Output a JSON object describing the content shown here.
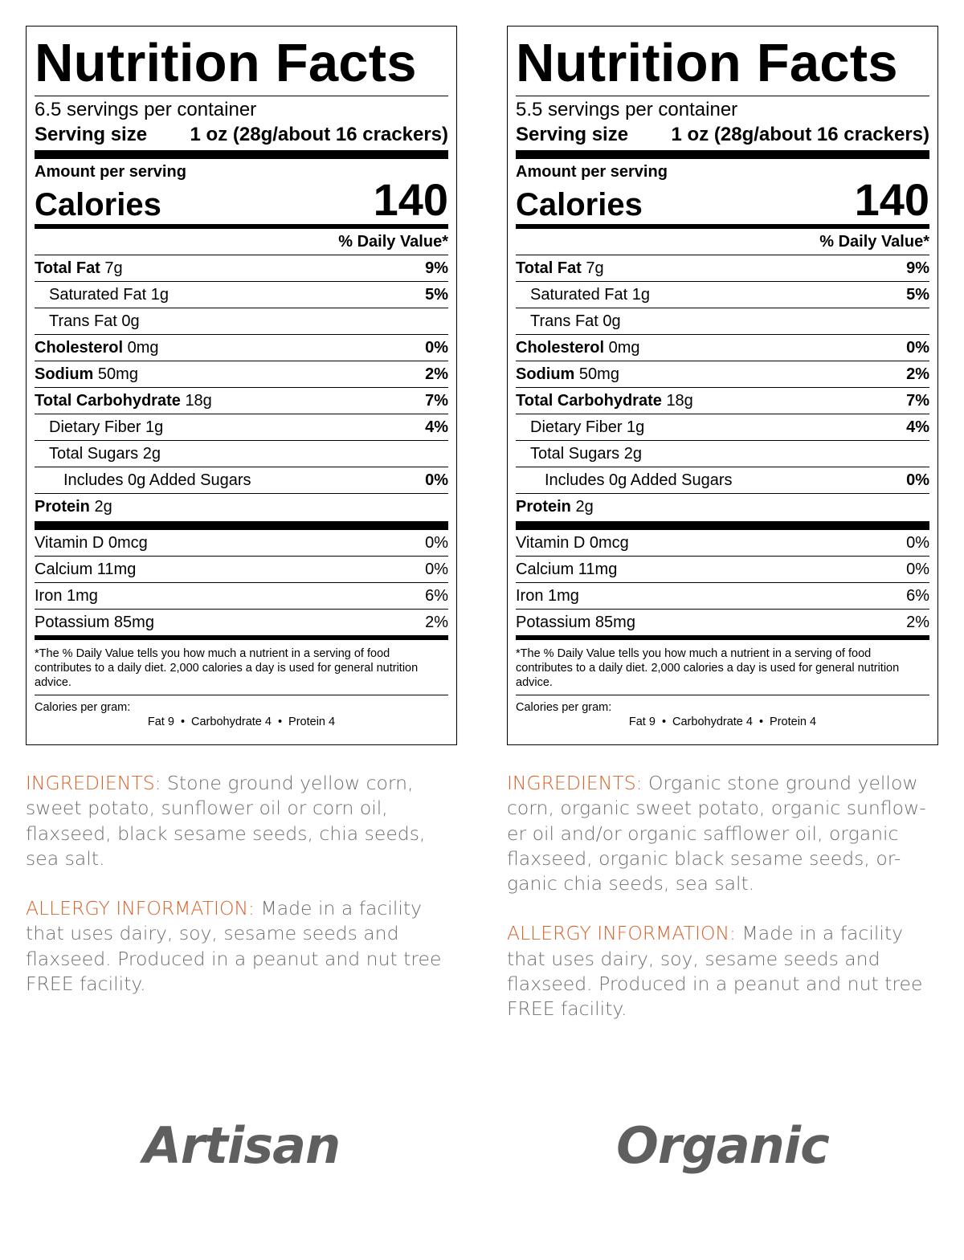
{
  "labels": [
    {
      "title": "Nutrition Facts",
      "servings": "6.5 servings per container",
      "serving_size_label": "Serving size",
      "serving_size_value": "1 oz (28g/about 16 crackers)",
      "amount_per_serving": "Amount per serving",
      "calories_label": "Calories",
      "calories_value": "140",
      "daily_value_header": "% Daily Value*",
      "nutrients": [
        {
          "name": "Total Fat",
          "amount": "7g",
          "dv": "9%"
        },
        {
          "name": "Saturated Fat 1g",
          "dv": "5%"
        },
        {
          "name": "Trans Fat 0g",
          "dv": ""
        },
        {
          "name": "Cholesterol",
          "amount": "0mg",
          "dv": "0%"
        },
        {
          "name": "Sodium",
          "amount": "50mg",
          "dv": "2%"
        },
        {
          "name": "Total Carbohydrate",
          "amount": "18g",
          "dv": "7%"
        },
        {
          "name": "Dietary Fiber 1g",
          "dv": "4%"
        },
        {
          "name": "Total Sugars 2g",
          "dv": ""
        },
        {
          "name": "Includes 0g Added Sugars",
          "dv": "0%"
        },
        {
          "name": "Protein",
          "amount": "2g",
          "dv": ""
        }
      ],
      "vitamins": [
        {
          "name": "Vitamin D 0mcg",
          "dv": "0%"
        },
        {
          "name": "Calcium 11mg",
          "dv": "0%"
        },
        {
          "name": "Iron 1mg",
          "dv": "6%"
        },
        {
          "name": "Potassium 85mg",
          "dv": "2%"
        }
      ],
      "footnote_lines": [
        "*The % Daily Value tells you how much a nutrient in a serving of food",
        "contributes to a daily diet. 2,000 calories a day is used for general nutrition",
        "advice."
      ],
      "calories_per_gram": "Calories per gram:",
      "cpg_fat": "Fat 9",
      "cpg_carb": "Carbohydrate 4",
      "cpg_protein": "Protein 4",
      "bullet": "•"
    },
    {
      "title": "Nutrition Facts",
      "servings": "5.5 servings per container",
      "serving_size_label": "Serving size",
      "serving_size_value": "1 oz (28g/about 16 crackers)",
      "amount_per_serving": "Amount per serving",
      "calories_label": "Calories",
      "calories_value": "140",
      "daily_value_header": "% Daily Value*",
      "nutrients": [
        {
          "name": "Total Fat",
          "amount": "7g",
          "dv": "9%"
        },
        {
          "name": "Saturated Fat 1g",
          "dv": "5%"
        },
        {
          "name": "Trans Fat 0g",
          "dv": ""
        },
        {
          "name": "Cholesterol",
          "amount": "0mg",
          "dv": "0%"
        },
        {
          "name": "Sodium",
          "amount": "50mg",
          "dv": "2%"
        },
        {
          "name": "Total Carbohydrate",
          "amount": "18g",
          "dv": "7%"
        },
        {
          "name": "Dietary Fiber 1g",
          "dv": "4%"
        },
        {
          "name": "Total Sugars 2g",
          "dv": ""
        },
        {
          "name": "Includes 0g Added Sugars",
          "dv": "0%"
        },
        {
          "name": "Protein",
          "amount": "2g",
          "dv": ""
        }
      ],
      "vitamins": [
        {
          "name": "Vitamin D 0mcg",
          "dv": "0%"
        },
        {
          "name": "Calcium 11mg",
          "dv": "0%"
        },
        {
          "name": "Iron 1mg",
          "dv": "6%"
        },
        {
          "name": "Potassium 85mg",
          "dv": "2%"
        }
      ],
      "footnote_lines": [
        "*The % Daily Value tells you how much a nutrient in a serving of food",
        "contributes to a daily diet. 2,000 calories a day is used for general nutrition",
        "advice."
      ],
      "calories_per_gram": "Calories per gram:",
      "cpg_fat": "Fat 9",
      "cpg_carb": "Carbohydrate 4",
      "cpg_protein": "Protein 4",
      "bullet": "•"
    }
  ],
  "texts": [
    {
      "ingredients_label": "INGREDIENTS:",
      "ingredients_lines": [
        " Stone ground yellow corn,",
        "sweet potato, sunflower oil or corn oil,",
        "flaxseed, black sesame seeds, chia seeds,",
        "sea salt."
      ],
      "allergy_label": "ALLERGY INFORMATION:",
      "allergy_lines": [
        " Made in a facility",
        "that uses dairy, soy, sesame seeds and",
        "flaxseed. Produced in a peanut and nut tree",
        "FREE facility."
      ]
    },
    {
      "ingredients_label": "INGREDIENTS:",
      "ingredients_lines": [
        " Organic stone ground yellow",
        "corn, organic sweet potato, organic sunflow-",
        "er oil and/or organic safflower oil, organic",
        "flaxseed, organic black sesame seeds, or-",
        "ganic  chia seeds, sea salt."
      ],
      "allergy_label": "ALLERGY INFORMATION:",
      "allergy_lines": [
        " Made in a facility",
        "that uses dairy, soy, sesame seeds and",
        "flaxseed. Produced in a peanut and nut tree",
        "FREE facility."
      ]
    }
  ],
  "brands": [
    "Artisan",
    "Organic"
  ],
  "colors": {
    "accent": "#d9622b",
    "body_text": "#6e6e6e",
    "brand_text": "#5f5f5f"
  }
}
